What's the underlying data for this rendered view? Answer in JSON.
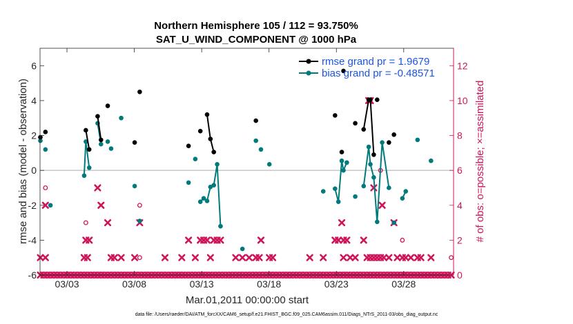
{
  "chart_data": {
    "type": "line",
    "title": "Northern Hemisphere 105 / 112 = 93.750%",
    "subtitle": "SAT_U_WIND_COMPONENT @ 1000 hPa",
    "xlabel": "Mar.01,2011 00:00:00 start",
    "ylabel": "rmse and bias (model - observation)",
    "y2label": "# of obs: o=possible; ×=assimilated",
    "xlim": [
      0.6,
      31.3
    ],
    "ylim": [
      -6,
      7
    ],
    "y2lim": [
      0,
      13
    ],
    "x_ticks": [
      2.6,
      7.6,
      12.6,
      17.6,
      22.6,
      27.6
    ],
    "x_tick_labels": [
      "03/03",
      "03/08",
      "03/13",
      "03/18",
      "03/23",
      "03/28"
    ],
    "y_ticks": [
      -6,
      -4,
      -2,
      0,
      2,
      4,
      6
    ],
    "y_tick_labels": [
      "-6",
      "-4",
      "-2",
      "0",
      "2",
      "4",
      "6"
    ],
    "y2_ticks": [
      0,
      2,
      4,
      6,
      8,
      10,
      12
    ],
    "y2_tick_labels": [
      "0",
      "2",
      "4",
      "6",
      "8",
      "10",
      "12"
    ],
    "zero_line": true,
    "legend_position": "top-right",
    "colors": {
      "rmse": "#000000",
      "bias": "#007a7a",
      "obs": "#d0145a",
      "zero": "#bbbbbb"
    },
    "series": [
      {
        "name": "rmse grand pr = 1.9679",
        "color": "#000000",
        "x": [
          0.625,
          1.0,
          4.0,
          4.25,
          4.875,
          5.125,
          5.625,
          7.625,
          8.0,
          11.625,
          12.5,
          13.0,
          13.25,
          13.5,
          16.625,
          22.5,
          23.0,
          23.125,
          24.0,
          24.625,
          25.0,
          25.125,
          25.375,
          25.625,
          26.5,
          26.875
        ],
        "y": [
          1.9,
          2.2,
          2.3,
          1.2,
          3.1,
          1.75,
          3.7,
          1.6,
          4.5,
          1.4,
          2.25,
          3.2,
          1.8,
          1.05,
          2.85,
          3.15,
          1.05,
          5.7,
          2.7,
          2.35,
          4.05,
          4.05,
          0.9,
          4.05,
          1.6,
          2.05
        ],
        "segments": [
          [
            4.0,
            4.25
          ],
          [
            4.875,
            5.125
          ],
          [
            13.0,
            13.25,
            13.5
          ],
          [
            24.625,
            25.0,
            25.125,
            25.375
          ]
        ]
      },
      {
        "name": "bias grand pr = -0.48571",
        "color": "#007a7a",
        "x": [
          0.625,
          1.0,
          1.375,
          3.875,
          4.0,
          4.25,
          4.875,
          5.125,
          5.625,
          5.875,
          6.625,
          7.625,
          8.0,
          11.625,
          12.125,
          12.5,
          12.75,
          13.0,
          13.25,
          13.5,
          13.75,
          14.0,
          15.625,
          16.625,
          17.0,
          17.625,
          21.625,
          22.5,
          22.75,
          23.0,
          23.125,
          23.375,
          24.0,
          24.625,
          25.0,
          25.125,
          25.375,
          25.625,
          26.0,
          26.5,
          26.875,
          27.5,
          27.75,
          28.625,
          29.625
        ],
        "y": [
          1.7,
          1.2,
          -2.0,
          -0.3,
          1.65,
          0.15,
          2.7,
          1.5,
          1.65,
          1.25,
          3.0,
          -0.9,
          -2.9,
          -0.7,
          0.65,
          -1.8,
          -1.6,
          -1.75,
          -0.95,
          -0.85,
          0.35,
          -3.2,
          -4.5,
          1.7,
          1.2,
          0.35,
          -1.2,
          -1.05,
          -1.8,
          0.55,
          0.0,
          0.45,
          -1.5,
          -0.9,
          1.35,
          0.35,
          -0.4,
          -2.95,
          1.6,
          -1.0,
          -3.0,
          -1.6,
          -1.2,
          1.75,
          0.55
        ],
        "segments": [
          [
            3.875,
            4.0,
            4.25
          ],
          [
            4.875,
            5.125
          ],
          [
            12.5,
            12.75,
            13.0,
            13.25,
            13.5,
            13.75,
            14.0
          ],
          [
            22.5,
            22.75,
            23.0,
            23.125,
            23.375
          ],
          [
            24.625,
            25.0,
            25.125,
            25.375,
            25.625,
            26.0,
            26.5
          ],
          [
            27.5,
            27.75
          ]
        ]
      },
      {
        "name": "# of obs possible",
        "color": "#d0145a",
        "marker": "circle",
        "x": [
          1.0,
          4.0,
          8.0,
          8.0,
          25.875,
          27.5,
          31.125
        ],
        "y": [
          5.0,
          3.0,
          4.0,
          1.0,
          6.0,
          2.0,
          1.0
        ]
      },
      {
        "name": "# of obs assimilated",
        "color": "#d0145a",
        "marker": "x",
        "x_step": 0.25,
        "x_start": 0.625,
        "x_end": 31.125,
        "baseline_value": 0,
        "x": [
          0.625,
          1.0,
          3.875,
          4.0,
          4.25,
          4.875,
          5.125,
          5.625,
          5.875,
          6.625,
          7.625,
          8.0,
          11.625,
          12.125,
          12.5,
          12.75,
          13.0,
          13.25,
          13.5,
          13.75,
          14.0,
          15.625,
          16.625,
          17.0,
          17.625,
          21.625,
          22.5,
          22.75,
          23.0,
          23.125,
          23.375,
          24.0,
          24.625,
          25.0,
          25.125,
          25.375,
          25.625,
          26.0,
          26.5,
          26.875,
          27.5,
          27.75,
          28.625,
          29.625,
          1.0,
          4.125,
          6.125,
          9.875,
          11.125,
          15.125,
          16.125,
          16.875,
          17.875,
          20.625,
          23.125,
          23.625,
          24.875,
          25.125,
          25.375,
          25.875,
          26.125,
          27.125,
          28.125,
          28.875
        ],
        "y": [
          1,
          4,
          1,
          2,
          2,
          5,
          4,
          3,
          1,
          1,
          1,
          3,
          2,
          1,
          2,
          2,
          2,
          1,
          2,
          2,
          2,
          1,
          1,
          2,
          1,
          1,
          2,
          2,
          3,
          2,
          2,
          1,
          2,
          10,
          10,
          5,
          1,
          4,
          1,
          3,
          1,
          1,
          1,
          1,
          1,
          1,
          1,
          1,
          1,
          1,
          1,
          1,
          1,
          1,
          1,
          1,
          1,
          1,
          1,
          1,
          1,
          1,
          1,
          1
        ]
      }
    ],
    "footnote": "data file: /Users/raeder/DAI/ATM_forcXX/CAM6_setup/f.e21.FHIST_BGC.f09_025.CAM6assim.011/Diags_NTrS_2011-03/obs_diag_output.nc"
  }
}
